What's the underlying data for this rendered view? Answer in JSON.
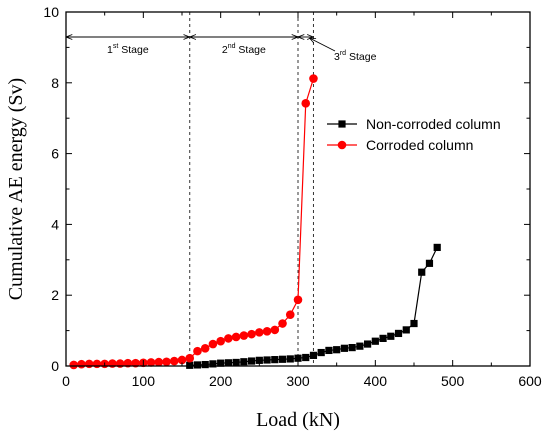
{
  "chart_data": {
    "type": "line",
    "title": "",
    "xlabel": "Load (kN)",
    "ylabel": "Cumulative AE energy (Sv)",
    "xlim": [
      0,
      600
    ],
    "ylim": [
      0,
      10
    ],
    "xticks": [
      0,
      100,
      200,
      300,
      400,
      500,
      600
    ],
    "yticks": [
      0,
      2,
      4,
      6,
      8,
      10
    ],
    "legend_position": "right",
    "series": [
      {
        "name": "Non-corroded column",
        "color": "#000000",
        "marker": "square",
        "x": [
          160,
          170,
          180,
          190,
          200,
          210,
          220,
          230,
          240,
          250,
          260,
          270,
          280,
          290,
          300,
          310,
          320,
          330,
          340,
          350,
          360,
          370,
          380,
          390,
          400,
          410,
          420,
          430,
          440,
          450,
          460,
          470,
          480
        ],
        "y": [
          0.02,
          0.03,
          0.04,
          0.06,
          0.08,
          0.09,
          0.1,
          0.12,
          0.14,
          0.16,
          0.17,
          0.18,
          0.19,
          0.2,
          0.22,
          0.24,
          0.3,
          0.38,
          0.44,
          0.46,
          0.5,
          0.52,
          0.56,
          0.62,
          0.7,
          0.78,
          0.84,
          0.92,
          1.02,
          1.2,
          2.65,
          2.9,
          3.35
        ]
      },
      {
        "name": "Corroded column",
        "color": "#ff0000",
        "marker": "circle",
        "x": [
          10,
          20,
          30,
          40,
          50,
          60,
          70,
          80,
          90,
          100,
          110,
          120,
          130,
          140,
          150,
          160,
          170,
          180,
          190,
          200,
          210,
          220,
          230,
          240,
          250,
          260,
          270,
          280,
          290,
          300,
          310,
          320
        ],
        "y": [
          0.03,
          0.05,
          0.06,
          0.06,
          0.06,
          0.07,
          0.07,
          0.08,
          0.08,
          0.09,
          0.1,
          0.11,
          0.12,
          0.14,
          0.17,
          0.22,
          0.42,
          0.5,
          0.62,
          0.7,
          0.78,
          0.82,
          0.86,
          0.9,
          0.95,
          0.98,
          1.02,
          1.2,
          1.45,
          1.87,
          7.42,
          8.12
        ]
      }
    ],
    "stage_dividers": [
      160,
      300,
      320
    ],
    "stages": [
      {
        "label": "1",
        "sup": "st",
        "suffix": " Stage",
        "from": 0,
        "to": 160
      },
      {
        "label": "2",
        "sup": "nd",
        "suffix": " Stage",
        "from": 160,
        "to": 300
      },
      {
        "label": "3",
        "sup": "rd",
        "suffix": " Stage",
        "from": 300,
        "to": 320
      }
    ]
  }
}
